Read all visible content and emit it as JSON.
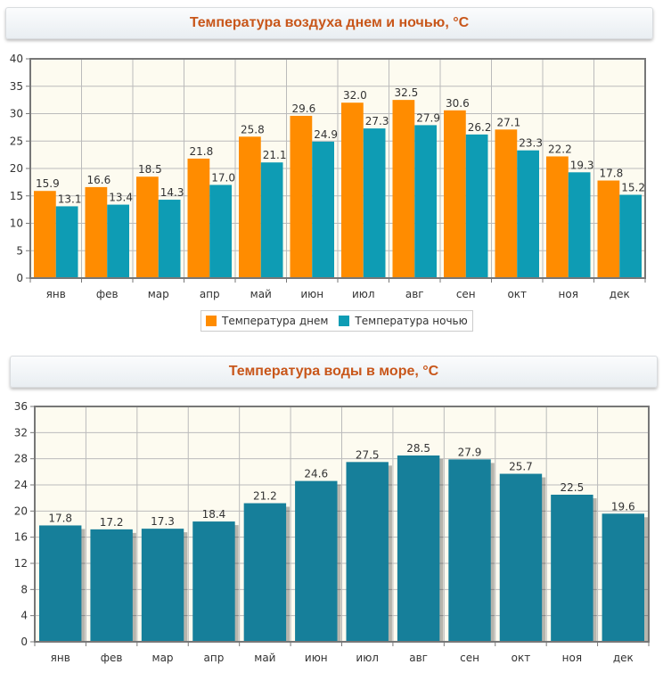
{
  "chart_data": [
    {
      "type": "bar",
      "title": "Температура воздуха днем и ночью, °C",
      "xlabel": "",
      "ylabel": "",
      "categories": [
        "янв",
        "фев",
        "мар",
        "апр",
        "май",
        "июн",
        "июл",
        "авг",
        "сен",
        "окт",
        "ноя",
        "дек"
      ],
      "series": [
        {
          "name": "Температура днем",
          "color": "#ff8c00",
          "values": [
            15.9,
            16.6,
            18.5,
            21.8,
            25.8,
            29.6,
            32.0,
            32.5,
            30.6,
            27.1,
            22.2,
            17.8
          ]
        },
        {
          "name": "Температура ночью",
          "color": "#0e9cb4",
          "values": [
            13.1,
            13.4,
            14.3,
            17.0,
            21.1,
            24.9,
            27.3,
            27.9,
            26.2,
            23.3,
            19.3,
            15.2
          ]
        }
      ],
      "ylim": [
        0,
        40
      ],
      "yticks": [
        0,
        5,
        10,
        15,
        20,
        25,
        30,
        35,
        40
      ],
      "grid": true,
      "legend": "bottom-center",
      "data_labels": true
    },
    {
      "type": "bar",
      "title": "Температура воды в море, °C",
      "xlabel": "",
      "ylabel": "",
      "categories": [
        "янв",
        "фев",
        "мар",
        "апр",
        "май",
        "июн",
        "июл",
        "авг",
        "сен",
        "окт",
        "ноя",
        "дек"
      ],
      "series": [
        {
          "name": "Температура воды",
          "color": "#167f9a",
          "values": [
            17.8,
            17.2,
            17.3,
            18.4,
            21.2,
            24.6,
            27.5,
            28.5,
            27.9,
            25.7,
            22.5,
            19.6
          ]
        }
      ],
      "ylim": [
        0,
        36
      ],
      "yticks": [
        0,
        4,
        8,
        12,
        16,
        20,
        24,
        28,
        32,
        36
      ],
      "grid": true,
      "legend": "none",
      "data_labels": true
    }
  ],
  "colors": {
    "title_text": "#c8561a",
    "plot_background": "#fdfbf0",
    "grid": "#bbbbbb",
    "axis": "#777777"
  }
}
